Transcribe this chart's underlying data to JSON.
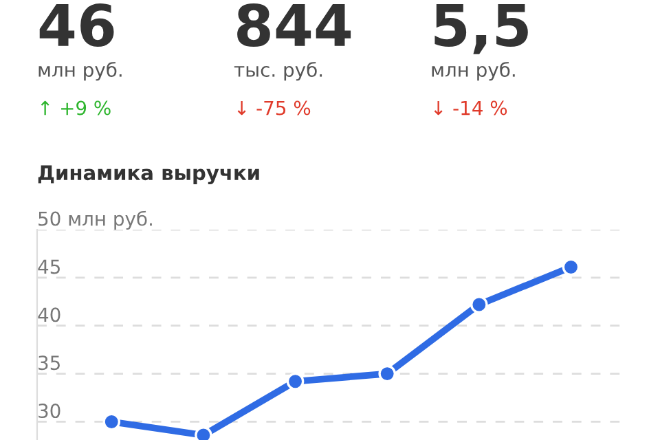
{
  "chart_data": [
    {
      "type": "other",
      "annotations": [
        "46",
        "млн руб.",
        "↑ +9 %",
        "844",
        "тыс. руб.",
        "↓ -75 %",
        "5,5",
        "млн руб.",
        "↓ -14 %"
      ],
      "colors": [
        "#333333",
        "#555555",
        "#2db52d",
        "#333333",
        "#555555",
        "#e03a2a",
        "#333333",
        "#555555",
        "#e03a2a"
      ]
    },
    {
      "type": "line",
      "title": "Динамика выручки",
      "categories": [
        null,
        null,
        null,
        null,
        null,
        null
      ],
      "series": [
        {
          "color": "#2f6be4",
          "values": [
            30.0,
            28.6,
            34.2,
            35.0,
            42.2,
            46.1
          ]
        }
      ],
      "ylim": [
        28.1,
        50
      ],
      "yticks": [
        {
          "value": 50,
          "label": "50 млн руб."
        },
        45,
        40,
        35,
        30
      ],
      "grid": "y",
      "marker": "circle",
      "line_style": "solid",
      "legend": false
    }
  ]
}
